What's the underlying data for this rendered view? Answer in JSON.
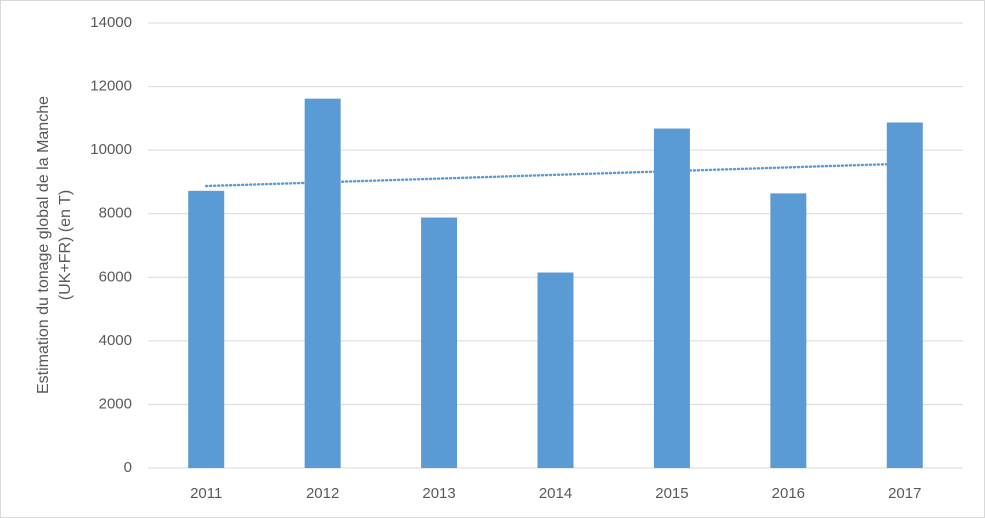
{
  "chart_data": {
    "type": "bar",
    "ylabel": [
      "Estimation du tonage global de la Manche",
      "(UK+FR) (en T)"
    ],
    "categories": [
      "2011",
      "2012",
      "2013",
      "2014",
      "2015",
      "2016",
      "2017"
    ],
    "values": [
      8720,
      11620,
      7880,
      6150,
      10680,
      8640,
      10870
    ],
    "color": "#5b9bd5",
    "trendline": "linear",
    "ylim": [
      0,
      14000
    ],
    "yticks": [
      0,
      2000,
      4000,
      6000,
      8000,
      10000,
      12000,
      14000
    ],
    "grid": true
  }
}
